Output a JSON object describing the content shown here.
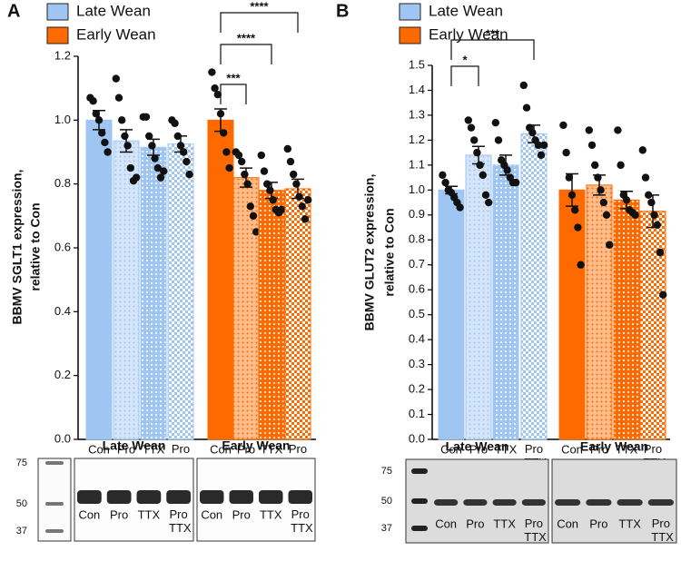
{
  "chart_data": [
    {
      "type": "bar",
      "panel": "A",
      "ylabel": [
        "BBMV SGLT1 expression,",
        "relative to Con"
      ],
      "categories": [
        "Con",
        "Pro",
        "TTX",
        "Pro TTX"
      ],
      "ylim": [
        0,
        1.2
      ],
      "yticks": [
        {
          "value": 0,
          "label": "0.0"
        },
        0.2,
        0.4,
        0.6,
        0.8,
        {
          "value": 1,
          "label": "1.0"
        },
        1.2
      ],
      "series": [
        {
          "name": "Late Wean",
          "color": "#9fc5f2",
          "values": [
            1.0,
            0.935,
            0.915,
            0.925
          ],
          "errors": [
            0.03,
            0.035,
            0.025,
            0.025
          ],
          "points": [
            [
              1.07,
              1.06,
              1.02,
              1.0,
              0.96,
              0.93,
              0.9
            ],
            [
              1.13,
              1.07,
              1.0,
              0.95,
              0.92,
              0.85,
              0.81,
              0.82
            ],
            [
              1.01,
              1.01,
              0.95,
              0.92,
              0.88,
              0.85,
              0.82,
              0.84
            ],
            [
              1.0,
              0.99,
              0.95,
              0.92,
              0.9,
              0.87,
              0.83
            ]
          ]
        },
        {
          "name": "Early Wean",
          "color": "#ff6a00",
          "values": [
            1.0,
            0.82,
            0.78,
            0.785
          ],
          "errors": [
            0.035,
            0.03,
            0.025,
            0.03
          ],
          "points": [
            [
              1.15,
              1.1,
              1.08,
              1.02,
              0.96,
              0.9,
              0.85
            ],
            [
              0.9,
              0.89,
              0.87,
              0.83,
              0.8,
              0.73,
              0.7,
              0.65
            ],
            [
              0.89,
              0.84,
              0.8,
              0.78,
              0.75,
              0.72,
              0.71,
              0.72
            ],
            [
              0.91,
              0.87,
              0.83,
              0.8,
              0.76,
              0.73,
              0.69,
              0.75
            ]
          ]
        }
      ],
      "significance": [
        "***",
        "****",
        "****"
      ],
      "blot": {
        "markers": [
          75,
          50,
          37
        ],
        "groups": [
          "Late Wean",
          "Early Wean"
        ]
      }
    },
    {
      "type": "bar",
      "panel": "B",
      "ylabel": [
        "BBMV GLUT2 expression,",
        "relative to Con"
      ],
      "categories": [
        "Con",
        "Pro",
        "TTX",
        "Pro TTX"
      ],
      "ylim": [
        0,
        1.5
      ],
      "yticks": [
        {
          "value": 0,
          "label": "0.0"
        },
        0.1,
        0.2,
        0.3,
        0.4,
        0.5,
        0.6,
        0.7,
        0.8,
        0.9,
        {
          "value": 1,
          "label": "1.0"
        },
        1.1,
        1.2,
        1.3,
        1.4,
        1.5
      ],
      "series": [
        {
          "name": "Late Wean",
          "color": "#9fc5f2",
          "values": [
            1.0,
            1.14,
            1.1,
            1.225
          ],
          "errors": [
            0.015,
            0.035,
            0.04,
            0.035
          ],
          "points": [
            [
              1.06,
              1.03,
              1.0,
              0.99,
              0.97,
              0.95,
              0.93
            ],
            [
              1.28,
              1.25,
              1.2,
              1.15,
              1.1,
              1.06,
              0.98,
              0.95
            ],
            [
              1.27,
              1.2,
              1.12,
              1.1,
              1.08,
              1.05,
              1.03,
              1.03
            ],
            [
              1.42,
              1.33,
              1.25,
              1.23,
              1.2,
              1.18,
              1.14,
              1.18
            ]
          ]
        },
        {
          "name": "Early Wean",
          "color": "#ff6a00",
          "values": [
            1.0,
            1.02,
            0.96,
            0.915
          ],
          "errors": [
            0.065,
            0.04,
            0.035,
            0.065
          ],
          "points": [
            [
              1.26,
              1.15,
              1.05,
              0.98,
              0.92,
              0.85,
              0.7
            ],
            [
              1.24,
              1.18,
              1.1,
              1.05,
              1.0,
              0.95,
              0.9,
              0.78
            ],
            [
              1.24,
              1.1,
              0.98,
              0.96,
              0.92,
              0.91,
              0.9
            ],
            [
              1.16,
              1.05,
              0.98,
              0.95,
              0.9,
              0.86,
              0.75,
              0.58
            ]
          ]
        }
      ],
      "significance": [
        "*",
        "***"
      ],
      "blot": {
        "markers": [
          75,
          50,
          37
        ],
        "groups": [
          "Late Wean",
          "Early Wean"
        ]
      }
    }
  ]
}
